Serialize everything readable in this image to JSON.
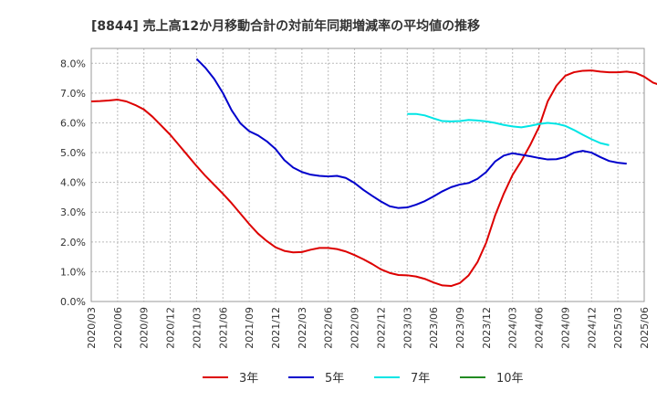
{
  "chart_data": {
    "type": "line",
    "title": "[8844]  売上高12か月移動合計の対前年同期増減率の平均値の推移",
    "xlabel": "",
    "ylabel": "",
    "ylim": [
      0,
      8.5
    ],
    "y_ticks": [
      "0.0%",
      "1.0%",
      "2.0%",
      "3.0%",
      "4.0%",
      "5.0%",
      "6.0%",
      "7.0%",
      "8.0%"
    ],
    "y_tick_values": [
      0,
      1,
      2,
      3,
      4,
      5,
      6,
      7,
      8
    ],
    "x_ticks": [
      "2020/03",
      "2020/06",
      "2020/09",
      "2020/12",
      "2021/03",
      "2021/06",
      "2021/09",
      "2021/12",
      "2022/03",
      "2022/06",
      "2022/09",
      "2022/12",
      "2023/03",
      "2023/06",
      "2023/09",
      "2023/12",
      "2024/03",
      "2024/06",
      "2024/09",
      "2024/12",
      "2025/03",
      "2025/06"
    ],
    "x_start": "2020/03",
    "grid": true,
    "legend_position": "bottom",
    "series": [
      {
        "name": "3年",
        "color": "#dd0000",
        "start": "2020/03",
        "values": [
          6.72,
          6.73,
          6.75,
          6.78,
          6.72,
          6.6,
          6.45,
          6.2,
          5.9,
          5.6,
          5.25,
          4.9,
          4.55,
          4.22,
          3.92,
          3.62,
          3.3,
          2.95,
          2.6,
          2.28,
          2.03,
          1.82,
          1.7,
          1.65,
          1.66,
          1.74,
          1.8,
          1.8,
          1.76,
          1.68,
          1.56,
          1.42,
          1.26,
          1.08,
          0.96,
          0.89,
          0.88,
          0.84,
          0.76,
          0.64,
          0.54,
          0.52,
          0.62,
          0.88,
          1.32,
          1.98,
          2.88,
          3.62,
          4.25,
          4.72,
          5.25,
          5.85,
          6.72,
          7.25,
          7.58,
          7.7,
          7.75,
          7.76,
          7.72,
          7.7,
          7.7,
          7.72,
          7.68,
          7.55,
          7.35,
          7.25,
          7.22,
          7.32
        ]
      },
      {
        "name": "5年",
        "color": "#0000cc",
        "start": "2021/03",
        "values": [
          8.15,
          7.85,
          7.48,
          7.0,
          6.42,
          5.98,
          5.72,
          5.58,
          5.38,
          5.12,
          4.75,
          4.5,
          4.35,
          4.26,
          4.22,
          4.2,
          4.22,
          4.15,
          3.98,
          3.75,
          3.55,
          3.36,
          3.2,
          3.14,
          3.16,
          3.25,
          3.37,
          3.53,
          3.7,
          3.84,
          3.93,
          3.98,
          4.12,
          4.35,
          4.7,
          4.9,
          4.98,
          4.93,
          4.88,
          4.82,
          4.77,
          4.78,
          4.85,
          5.0,
          5.06,
          5.0,
          4.85,
          4.72,
          4.66,
          4.63
        ]
      },
      {
        "name": "7年",
        "color": "#00e5e5",
        "start": "2023/03",
        "values": [
          6.3,
          6.3,
          6.25,
          6.15,
          6.06,
          6.05,
          6.06,
          6.1,
          6.08,
          6.05,
          6.0,
          5.93,
          5.88,
          5.85,
          5.9,
          5.96,
          6.0,
          5.97,
          5.9,
          5.76,
          5.6,
          5.45,
          5.32,
          5.25
        ]
      },
      {
        "name": "10年",
        "color": "#228b22",
        "start": "",
        "values": []
      }
    ]
  }
}
